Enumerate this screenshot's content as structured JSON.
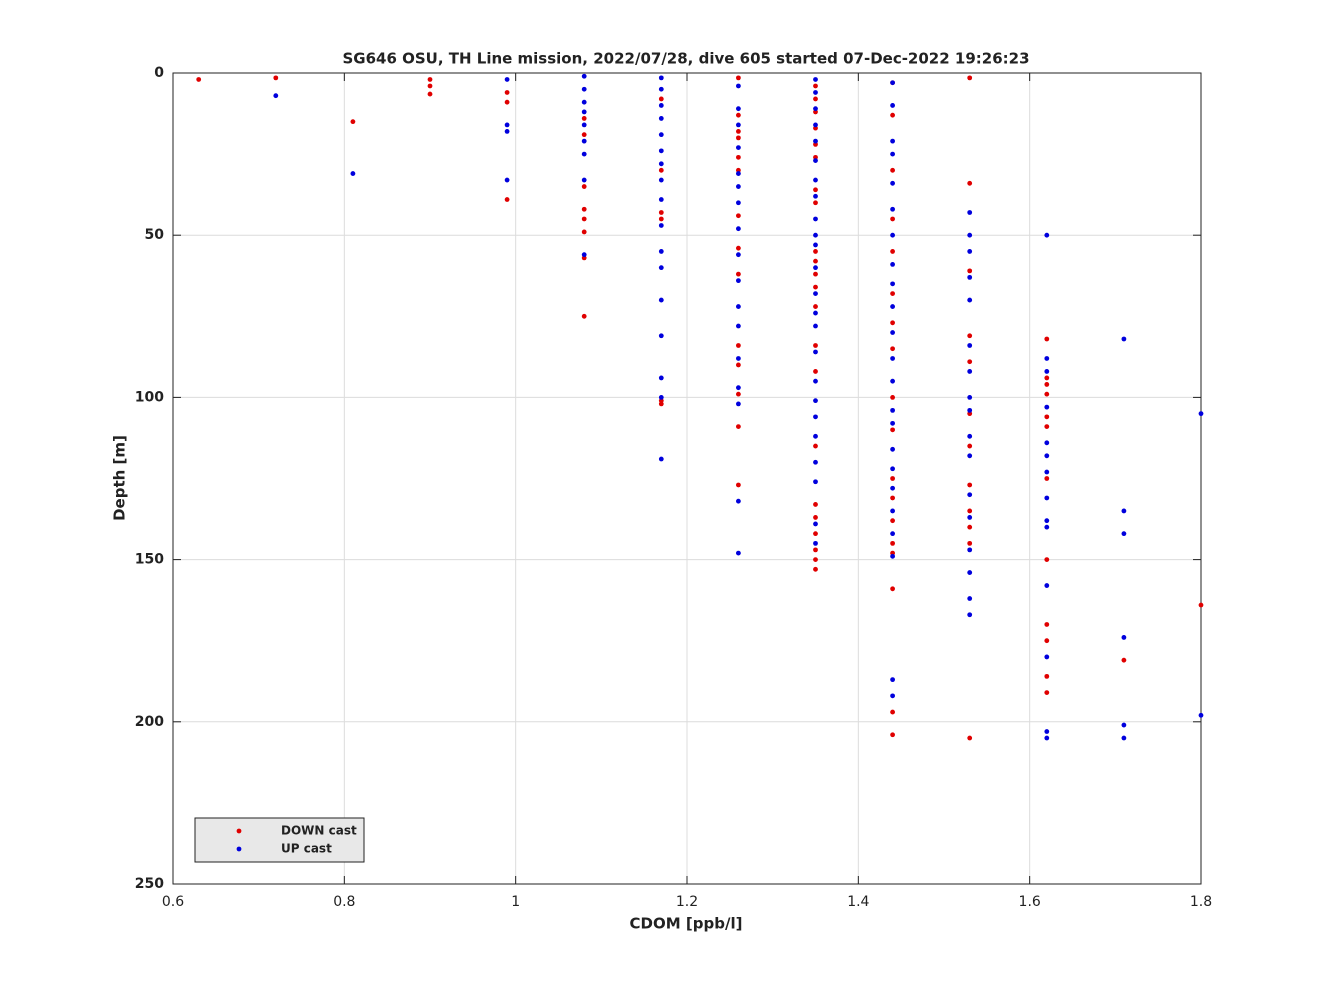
{
  "chart_data": {
    "type": "scatter",
    "title": "SG646 OSU, TH Line mission, 2022/07/28, dive 605 started 07-Dec-2022 19:26:23",
    "x_label": "CDOM [ppb/l]",
    "y_label": "Depth [m]",
    "xlim": [
      0.6,
      1.8
    ],
    "xticks": [
      0.6,
      0.8,
      1,
      1.2,
      1.4,
      1.6,
      1.8
    ],
    "ylim": [
      0,
      250
    ],
    "yticks": [
      0,
      50,
      100,
      150,
      200,
      250
    ],
    "y_reversed": true,
    "grid": true,
    "legend": "lower-left",
    "series": [
      {
        "name": "DOWN cast",
        "color": "#e00000",
        "x": [
          0.63,
          0.72,
          0.81,
          0.9,
          0.9,
          0.9,
          0.99,
          0.99,
          0.99,
          1.08,
          1.08,
          1.08,
          1.08,
          1.08,
          1.08,
          1.08,
          1.08,
          1.17,
          1.17,
          1.17,
          1.17,
          1.17,
          1.17,
          1.26,
          1.26,
          1.26,
          1.26,
          1.26,
          1.26,
          1.26,
          1.26,
          1.26,
          1.26,
          1.26,
          1.26,
          1.26,
          1.26,
          1.35,
          1.35,
          1.35,
          1.35,
          1.35,
          1.35,
          1.35,
          1.35,
          1.35,
          1.35,
          1.35,
          1.35,
          1.35,
          1.35,
          1.35,
          1.35,
          1.35,
          1.35,
          1.35,
          1.35,
          1.35,
          1.35,
          1.44,
          1.44,
          1.44,
          1.44,
          1.44,
          1.44,
          1.44,
          1.44,
          1.44,
          1.44,
          1.44,
          1.44,
          1.44,
          1.44,
          1.44,
          1.44,
          1.44,
          1.44,
          1.53,
          1.53,
          1.53,
          1.53,
          1.53,
          1.53,
          1.53,
          1.53,
          1.53,
          1.53,
          1.53,
          1.53,
          1.62,
          1.62,
          1.62,
          1.62,
          1.62,
          1.62,
          1.62,
          1.62,
          1.62,
          1.62,
          1.62,
          1.62,
          1.71,
          1.8
        ],
        "values": [
          2,
          1.5,
          15,
          2,
          4,
          6.5,
          6,
          9,
          39,
          14,
          19,
          35,
          42,
          45,
          49,
          57,
          75,
          8,
          30,
          43,
          45,
          101,
          102,
          1.5,
          13,
          18,
          20,
          26,
          30,
          44,
          54,
          62,
          84,
          90,
          99,
          109,
          127,
          4,
          8,
          12,
          17,
          22,
          26,
          36,
          40,
          55,
          58,
          62,
          66,
          72,
          84,
          92,
          115,
          133,
          137,
          142,
          147,
          150,
          153,
          3,
          13,
          30,
          45,
          55,
          68,
          77,
          85,
          100,
          110,
          125,
          131,
          138,
          145,
          148,
          159,
          197,
          204,
          1.5,
          34,
          61,
          81,
          89,
          105,
          115,
          127,
          135,
          140,
          145,
          205,
          82,
          94,
          96,
          99,
          106,
          109,
          125,
          150,
          170,
          175,
          186,
          191,
          181,
          164
        ]
      },
      {
        "name": "UP cast",
        "color": "#0000dd",
        "x": [
          0.72,
          0.81,
          0.99,
          0.99,
          0.99,
          0.99,
          1.08,
          1.08,
          1.08,
          1.08,
          1.08,
          1.08,
          1.08,
          1.08,
          1.08,
          1.17,
          1.17,
          1.17,
          1.17,
          1.17,
          1.17,
          1.17,
          1.17,
          1.17,
          1.17,
          1.17,
          1.17,
          1.17,
          1.17,
          1.17,
          1.17,
          1.17,
          1.26,
          1.26,
          1.26,
          1.26,
          1.26,
          1.26,
          1.26,
          1.26,
          1.26,
          1.26,
          1.26,
          1.26,
          1.26,
          1.26,
          1.26,
          1.26,
          1.26,
          1.35,
          1.35,
          1.35,
          1.35,
          1.35,
          1.35,
          1.35,
          1.35,
          1.35,
          1.35,
          1.35,
          1.35,
          1.35,
          1.35,
          1.35,
          1.35,
          1.35,
          1.35,
          1.35,
          1.35,
          1.35,
          1.35,
          1.35,
          1.35,
          1.44,
          1.44,
          1.44,
          1.44,
          1.44,
          1.44,
          1.44,
          1.44,
          1.44,
          1.44,
          1.44,
          1.44,
          1.44,
          1.44,
          1.44,
          1.44,
          1.44,
          1.44,
          1.44,
          1.44,
          1.44,
          1.44,
          1.44,
          1.53,
          1.53,
          1.53,
          1.53,
          1.53,
          1.53,
          1.53,
          1.53,
          1.53,
          1.53,
          1.53,
          1.53,
          1.53,
          1.53,
          1.53,
          1.53,
          1.53,
          1.62,
          1.62,
          1.62,
          1.62,
          1.62,
          1.62,
          1.62,
          1.62,
          1.62,
          1.62,
          1.62,
          1.62,
          1.62,
          1.62,
          1.71,
          1.71,
          1.71,
          1.71,
          1.71,
          1.71,
          1.8,
          1.8
        ],
        "values": [
          7,
          31,
          2,
          16,
          18,
          33,
          1,
          5,
          9,
          12,
          16,
          21,
          25,
          33,
          56,
          1.5,
          5,
          10,
          14,
          19,
          24,
          28,
          33,
          39,
          47,
          55,
          60,
          70,
          81,
          94,
          100,
          119,
          4,
          11,
          16,
          23,
          31,
          35,
          40,
          48,
          56,
          64,
          72,
          78,
          88,
          97,
          102,
          132,
          148,
          2,
          6,
          11,
          16,
          21,
          27,
          33,
          38,
          45,
          50,
          53,
          60,
          68,
          74,
          78,
          86,
          95,
          101,
          106,
          112,
          120,
          126,
          139,
          145,
          3,
          10,
          21,
          25,
          34,
          42,
          50,
          59,
          65,
          72,
          80,
          88,
          95,
          104,
          108,
          116,
          122,
          128,
          135,
          142,
          149,
          187,
          192,
          43,
          50,
          55,
          63,
          70,
          84,
          92,
          100,
          104,
          112,
          118,
          130,
          137,
          147,
          154,
          162,
          167,
          50,
          88,
          92,
          103,
          114,
          118,
          123,
          131,
          138,
          140,
          158,
          180,
          203,
          205,
          82,
          135,
          142,
          174,
          201,
          205,
          105,
          198
        ]
      }
    ]
  }
}
